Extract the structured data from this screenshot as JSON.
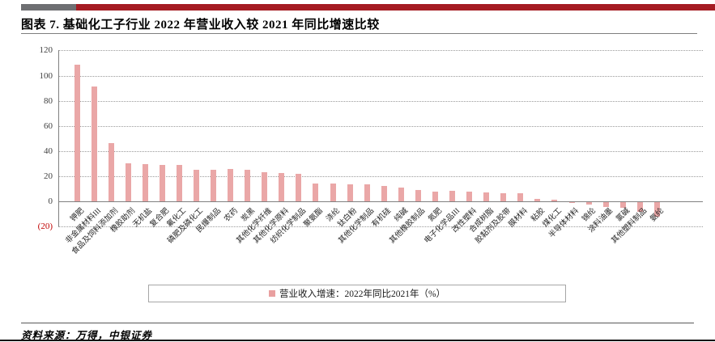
{
  "header": {
    "title": "图表 7. 基础化工子行业 2022 年营业收入较 2021 年同比增速比较"
  },
  "chart_data": {
    "type": "bar",
    "title": "基础化工子行业 2022 年营业收入较 2021 年同比增速比较",
    "legend": "营业收入增速：2022年同比2021年（%）",
    "legend_position": "bottom",
    "xlabel": "",
    "ylabel": "",
    "ylim": [
      -20,
      120
    ],
    "grid": "horizontal-dotted",
    "bar_color": "#eaa7a7",
    "accent_red": "#a51c23",
    "accent_gray": "#6e6f72",
    "negative_tick_color": "#c00000",
    "yticks": [
      {
        "value": 120,
        "label": "120"
      },
      {
        "value": 100,
        "label": "100"
      },
      {
        "value": 80,
        "label": "80"
      },
      {
        "value": 60,
        "label": "60"
      },
      {
        "value": 40,
        "label": "40"
      },
      {
        "value": 20,
        "label": "20"
      },
      {
        "value": 0,
        "label": "0"
      },
      {
        "value": -20,
        "label": "(20)"
      }
    ],
    "categories": [
      "钾肥",
      "非金属材料III",
      "食品及饲料添加剂",
      "橡胶助剂",
      "无机盐",
      "复合肥",
      "氟化工",
      "磷肥及磷化工",
      "民爆制品",
      "农药",
      "炭黑",
      "其他化学纤维",
      "其他化学原料",
      "纺织化学制品",
      "聚氨酯",
      "涤纶",
      "钛白粉",
      "其他化学制品",
      "有机硅",
      "纯碱",
      "其他橡胶制品",
      "氮肥",
      "电子化学品III",
      "改性塑料",
      "合成树脂",
      "胶黏剂及胶带",
      "膜材料",
      "粘胶",
      "煤化工",
      "半导体材料",
      "锦纶",
      "涂料油墨",
      "氯碱",
      "其他塑料制品",
      "氨纶"
    ],
    "values": [
      109,
      91,
      46,
      30,
      29.6,
      29,
      29,
      25.4,
      25.3,
      25.5,
      24.9,
      23.2,
      22.7,
      21.9,
      14.4,
      14,
      13.6,
      13.3,
      12,
      10.9,
      8.8,
      8,
      8.3,
      7.8,
      6.9,
      6.5,
      6.4,
      2.1,
      1.3,
      -0.4,
      -2,
      -4,
      -4.8,
      -7.8,
      -11.6
    ]
  },
  "footer": {
    "source": "资料来源：万得，中银证券"
  }
}
